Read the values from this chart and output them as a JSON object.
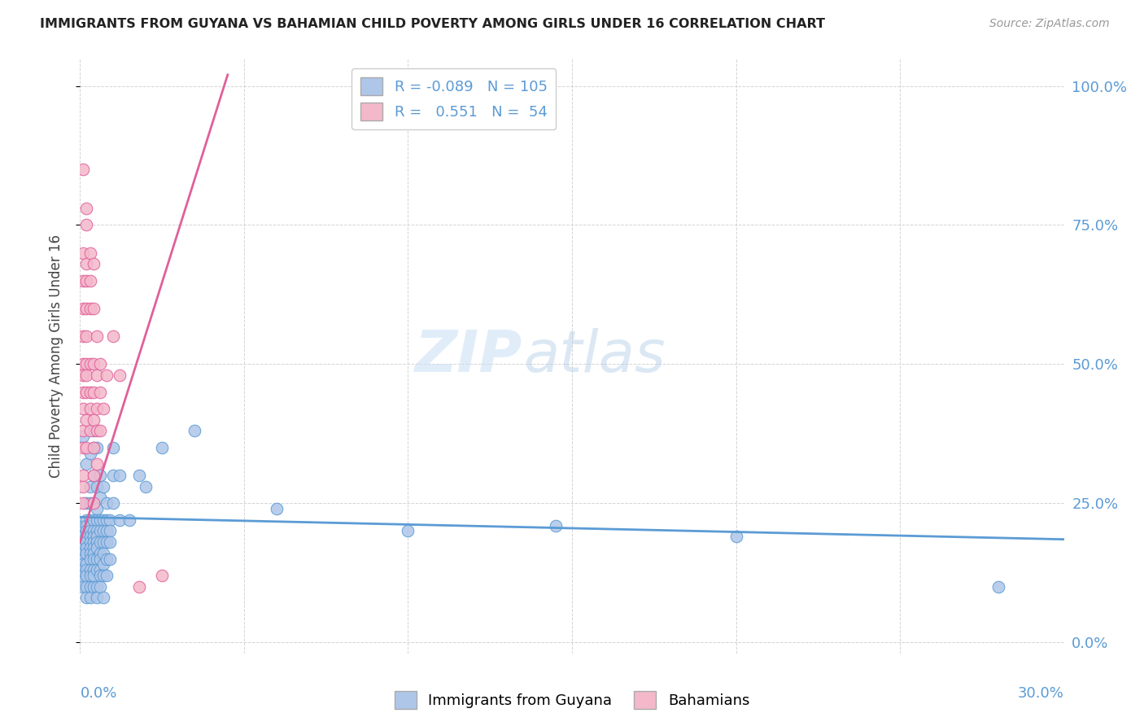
{
  "title": "IMMIGRANTS FROM GUYANA VS BAHAMIAN CHILD POVERTY AMONG GIRLS UNDER 16 CORRELATION CHART",
  "source": "Source: ZipAtlas.com",
  "ylabel": "Child Poverty Among Girls Under 16",
  "ytick_labels": [
    "0.0%",
    "25.0%",
    "50.0%",
    "75.0%",
    "100.0%"
  ],
  "ytick_values": [
    0.0,
    0.25,
    0.5,
    0.75,
    1.0
  ],
  "xlim": [
    0.0,
    0.3
  ],
  "ylim": [
    -0.02,
    1.05
  ],
  "watermark_zip": "ZIP",
  "watermark_atlas": "atlas",
  "blue_color": "#aec6e8",
  "blue_edge_color": "#5b9bd5",
  "pink_color": "#f4b8cb",
  "pink_edge_color": "#e0609a",
  "blue_line_color": "#5b9bd5",
  "pink_line_color": "#e0609a",
  "background_color": "#ffffff",
  "grid_color": "#d0d0d0",
  "title_color": "#222222",
  "axis_label_color": "#5b9bd5",
  "source_color": "#999999",
  "blue_scatter": [
    [
      0.001,
      0.37
    ],
    [
      0.001,
      0.21
    ],
    [
      0.001,
      0.19
    ],
    [
      0.001,
      0.18
    ],
    [
      0.001,
      0.17
    ],
    [
      0.001,
      0.16
    ],
    [
      0.001,
      0.15
    ],
    [
      0.001,
      0.14
    ],
    [
      0.001,
      0.13
    ],
    [
      0.001,
      0.12
    ],
    [
      0.001,
      0.11
    ],
    [
      0.001,
      0.1
    ],
    [
      0.002,
      0.32
    ],
    [
      0.002,
      0.25
    ],
    [
      0.002,
      0.22
    ],
    [
      0.002,
      0.21
    ],
    [
      0.002,
      0.2
    ],
    [
      0.002,
      0.19
    ],
    [
      0.002,
      0.18
    ],
    [
      0.002,
      0.17
    ],
    [
      0.002,
      0.16
    ],
    [
      0.002,
      0.14
    ],
    [
      0.002,
      0.13
    ],
    [
      0.002,
      0.12
    ],
    [
      0.002,
      0.1
    ],
    [
      0.002,
      0.08
    ],
    [
      0.003,
      0.34
    ],
    [
      0.003,
      0.28
    ],
    [
      0.003,
      0.25
    ],
    [
      0.003,
      0.22
    ],
    [
      0.003,
      0.21
    ],
    [
      0.003,
      0.2
    ],
    [
      0.003,
      0.19
    ],
    [
      0.003,
      0.18
    ],
    [
      0.003,
      0.17
    ],
    [
      0.003,
      0.16
    ],
    [
      0.003,
      0.15
    ],
    [
      0.003,
      0.13
    ],
    [
      0.003,
      0.12
    ],
    [
      0.003,
      0.1
    ],
    [
      0.003,
      0.08
    ],
    [
      0.004,
      0.38
    ],
    [
      0.004,
      0.35
    ],
    [
      0.004,
      0.3
    ],
    [
      0.004,
      0.25
    ],
    [
      0.004,
      0.22
    ],
    [
      0.004,
      0.2
    ],
    [
      0.004,
      0.19
    ],
    [
      0.004,
      0.18
    ],
    [
      0.004,
      0.17
    ],
    [
      0.004,
      0.16
    ],
    [
      0.004,
      0.15
    ],
    [
      0.004,
      0.13
    ],
    [
      0.004,
      0.12
    ],
    [
      0.004,
      0.1
    ],
    [
      0.005,
      0.35
    ],
    [
      0.005,
      0.28
    ],
    [
      0.005,
      0.24
    ],
    [
      0.005,
      0.22
    ],
    [
      0.005,
      0.2
    ],
    [
      0.005,
      0.19
    ],
    [
      0.005,
      0.18
    ],
    [
      0.005,
      0.17
    ],
    [
      0.005,
      0.15
    ],
    [
      0.005,
      0.13
    ],
    [
      0.005,
      0.1
    ],
    [
      0.005,
      0.08
    ],
    [
      0.006,
      0.3
    ],
    [
      0.006,
      0.26
    ],
    [
      0.006,
      0.22
    ],
    [
      0.006,
      0.2
    ],
    [
      0.006,
      0.18
    ],
    [
      0.006,
      0.16
    ],
    [
      0.006,
      0.15
    ],
    [
      0.006,
      0.13
    ],
    [
      0.006,
      0.12
    ],
    [
      0.006,
      0.1
    ],
    [
      0.007,
      0.28
    ],
    [
      0.007,
      0.22
    ],
    [
      0.007,
      0.2
    ],
    [
      0.007,
      0.18
    ],
    [
      0.007,
      0.16
    ],
    [
      0.007,
      0.14
    ],
    [
      0.007,
      0.12
    ],
    [
      0.007,
      0.08
    ],
    [
      0.008,
      0.25
    ],
    [
      0.008,
      0.22
    ],
    [
      0.008,
      0.2
    ],
    [
      0.008,
      0.18
    ],
    [
      0.008,
      0.15
    ],
    [
      0.008,
      0.12
    ],
    [
      0.009,
      0.22
    ],
    [
      0.009,
      0.2
    ],
    [
      0.009,
      0.18
    ],
    [
      0.009,
      0.15
    ],
    [
      0.01,
      0.35
    ],
    [
      0.01,
      0.3
    ],
    [
      0.01,
      0.25
    ],
    [
      0.012,
      0.3
    ],
    [
      0.012,
      0.22
    ],
    [
      0.015,
      0.22
    ],
    [
      0.018,
      0.3
    ],
    [
      0.02,
      0.28
    ],
    [
      0.025,
      0.35
    ],
    [
      0.035,
      0.38
    ],
    [
      0.06,
      0.24
    ],
    [
      0.1,
      0.2
    ],
    [
      0.145,
      0.21
    ],
    [
      0.2,
      0.19
    ],
    [
      0.28,
      0.1
    ]
  ],
  "pink_scatter": [
    [
      0.001,
      0.85
    ],
    [
      0.001,
      0.7
    ],
    [
      0.001,
      0.65
    ],
    [
      0.001,
      0.6
    ],
    [
      0.001,
      0.55
    ],
    [
      0.001,
      0.5
    ],
    [
      0.001,
      0.48
    ],
    [
      0.001,
      0.45
    ],
    [
      0.001,
      0.42
    ],
    [
      0.001,
      0.38
    ],
    [
      0.001,
      0.35
    ],
    [
      0.001,
      0.3
    ],
    [
      0.001,
      0.28
    ],
    [
      0.001,
      0.25
    ],
    [
      0.002,
      0.78
    ],
    [
      0.002,
      0.75
    ],
    [
      0.002,
      0.68
    ],
    [
      0.002,
      0.65
    ],
    [
      0.002,
      0.6
    ],
    [
      0.002,
      0.55
    ],
    [
      0.002,
      0.5
    ],
    [
      0.002,
      0.48
    ],
    [
      0.002,
      0.45
    ],
    [
      0.002,
      0.4
    ],
    [
      0.002,
      0.35
    ],
    [
      0.003,
      0.7
    ],
    [
      0.003,
      0.65
    ],
    [
      0.003,
      0.6
    ],
    [
      0.003,
      0.5
    ],
    [
      0.003,
      0.45
    ],
    [
      0.003,
      0.42
    ],
    [
      0.003,
      0.38
    ],
    [
      0.004,
      0.68
    ],
    [
      0.004,
      0.6
    ],
    [
      0.004,
      0.5
    ],
    [
      0.004,
      0.45
    ],
    [
      0.004,
      0.4
    ],
    [
      0.004,
      0.35
    ],
    [
      0.004,
      0.3
    ],
    [
      0.004,
      0.25
    ],
    [
      0.005,
      0.55
    ],
    [
      0.005,
      0.48
    ],
    [
      0.005,
      0.42
    ],
    [
      0.005,
      0.38
    ],
    [
      0.005,
      0.32
    ],
    [
      0.006,
      0.5
    ],
    [
      0.006,
      0.45
    ],
    [
      0.006,
      0.38
    ],
    [
      0.007,
      0.42
    ],
    [
      0.008,
      0.48
    ],
    [
      0.01,
      0.55
    ],
    [
      0.012,
      0.48
    ],
    [
      0.018,
      0.1
    ],
    [
      0.025,
      0.12
    ]
  ],
  "blue_line_x": [
    0.0,
    0.3
  ],
  "blue_line_y": [
    0.225,
    0.185
  ],
  "pink_line_x": [
    0.0,
    0.045
  ],
  "pink_line_y": [
    0.18,
    1.02
  ]
}
